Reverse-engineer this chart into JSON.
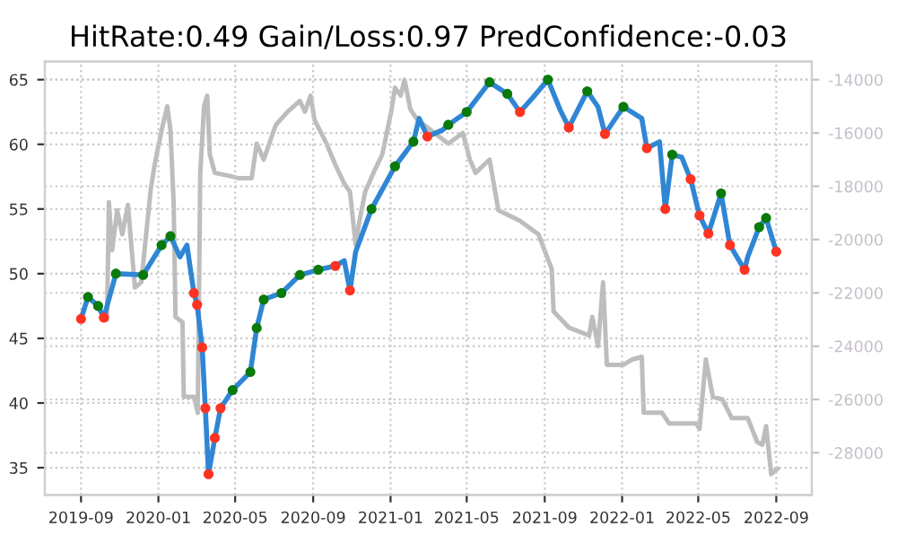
{
  "chart_data": {
    "type": "line",
    "title": "HitRate:0.49 Gain/Loss:0.97 PredConfidence:-0.03",
    "xlim": [
      "2019-07-06",
      "2022-10-27"
    ],
    "xticks": [
      "2019-09",
      "2020-01",
      "2020-05",
      "2020-09",
      "2021-01",
      "2021-05",
      "2021-09",
      "2022-01",
      "2022-05",
      "2022-09"
    ],
    "ylim": [
      32.9,
      66.4
    ],
    "yticks": [
      35,
      40,
      45,
      50,
      55,
      60,
      65
    ],
    "y2lim": [
      -29580,
      -13320
    ],
    "y2ticks": [
      -28000,
      -26000,
      -24000,
      -22000,
      -20000,
      -18000,
      -16000,
      -14000
    ],
    "grid": true,
    "series": [
      {
        "axis": "y2",
        "color": "#bdbdbd",
        "x": [
          "2019-10-03",
          "2019-10-12",
          "2019-10-15",
          "2019-10-20",
          "2019-10-28",
          "2019-11-05",
          "2019-11-14",
          "2019-11-20",
          "2019-11-25",
          "2019-12-05",
          "2019-12-20",
          "2019-12-26",
          "2020-01-06",
          "2020-01-15",
          "2020-01-20",
          "2020-01-25",
          "2020-01-28",
          "2020-02-08",
          "2020-02-10",
          "2020-02-26",
          "2020-03-03",
          "2020-03-07",
          "2020-03-13",
          "2020-03-18",
          "2020-03-22",
          "2020-03-30",
          "2020-04-20",
          "2020-05-07",
          "2020-05-27",
          "2020-06-04",
          "2020-06-15",
          "2020-07-04",
          "2020-07-23",
          "2020-08-11",
          "2020-08-19",
          "2020-08-28",
          "2020-09-03",
          "2020-09-22",
          "2020-10-06",
          "2020-10-20",
          "2020-10-29",
          "2020-11-07",
          "2020-11-13",
          "2020-11-22",
          "2020-12-05",
          "2020-12-19",
          "2021-01-02",
          "2021-01-08",
          "2021-01-17",
          "2021-01-23",
          "2021-02-01",
          "2021-02-12",
          "2021-04-02",
          "2021-04-25",
          "2021-05-06",
          "2021-05-15",
          "2021-06-06",
          "2021-06-20",
          "2021-07-24",
          "2021-08-22",
          "2021-09-12",
          "2021-09-15",
          "2021-10-09",
          "2021-11-10",
          "2021-11-15",
          "2021-11-24",
          "2021-12-02",
          "2021-12-08",
          "2022-01-03",
          "2022-01-17",
          "2022-02-01",
          "2022-02-04",
          "2022-03-05",
          "2022-03-16",
          "2022-04-28",
          "2022-05-03",
          "2022-05-13",
          "2022-05-24",
          "2022-06-08",
          "2022-06-23",
          "2022-07-18",
          "2022-08-02",
          "2022-08-10",
          "2022-08-16",
          "2022-08-24",
          "2022-09-03"
        ],
        "values": [
          -22900,
          -23000,
          -18600,
          -20400,
          -18900,
          -19800,
          -18700,
          -20400,
          -21800,
          -21600,
          -18100,
          -17200,
          -15900,
          -15000,
          -15900,
          -18600,
          -22900,
          -23100,
          -25900,
          -25900,
          -26500,
          -17500,
          -15000,
          -14600,
          -16800,
          -17500,
          -17600,
          -17700,
          -17700,
          -16400,
          -17000,
          -15700,
          -15200,
          -14800,
          -15200,
          -14600,
          -15500,
          -16400,
          -17200,
          -17900,
          -18200,
          -20200,
          -19300,
          -18200,
          -17500,
          -16800,
          -15200,
          -14300,
          -14600,
          -14000,
          -15100,
          -15500,
          -16400,
          -16000,
          -17000,
          -17500,
          -17000,
          -18900,
          -19300,
          -19800,
          -21100,
          -22700,
          -23300,
          -23600,
          -22900,
          -24000,
          -21600,
          -24700,
          -24700,
          -24500,
          -24400,
          -26500,
          -26500,
          -26900,
          -26900,
          -27100,
          -24500,
          -25900,
          -26000,
          -26700,
          -26700,
          -27600,
          -27700,
          -27000,
          -28800,
          -28600
        ]
      },
      {
        "color": "#2f86d4",
        "x": [
          "2019-09-01",
          "2019-09-12",
          "2019-09-28",
          "2019-10-07",
          "2019-10-26",
          "2019-12-08",
          "2020-01-06",
          "2020-01-20",
          "2020-02-04",
          "2020-02-15",
          "2020-02-26",
          "2020-03-02",
          "2020-03-10",
          "2020-03-15",
          "2020-03-20",
          "2020-03-30",
          "2020-04-08",
          "2020-04-27",
          "2020-05-25",
          "2020-06-04",
          "2020-06-15",
          "2020-07-13",
          "2020-08-11",
          "2020-09-09",
          "2020-10-06",
          "2020-10-20",
          "2020-10-29",
          "2020-11-07",
          "2020-12-02",
          "2021-01-08",
          "2021-02-06",
          "2021-02-15",
          "2021-02-28",
          "2021-03-24",
          "2021-04-02",
          "2021-05-01",
          "2021-06-06",
          "2021-07-04",
          "2021-07-24",
          "2021-08-13",
          "2021-09-06",
          "2021-09-25",
          "2021-10-09",
          "2021-11-07",
          "2021-11-24",
          "2021-12-05",
          "2022-01-03",
          "2022-02-01",
          "2022-02-09",
          "2022-03-01",
          "2022-03-10",
          "2022-03-21",
          "2022-04-05",
          "2022-04-19",
          "2022-05-03",
          "2022-05-17",
          "2022-06-06",
          "2022-06-20",
          "2022-07-13",
          "2022-07-18",
          "2022-08-05",
          "2022-08-16",
          "2022-09-01"
        ],
        "values": [
          46.5,
          48.2,
          47.5,
          46.6,
          50.0,
          49.9,
          52.2,
          52.9,
          51.3,
          52.2,
          48.5,
          47.6,
          44.3,
          39.6,
          34.5,
          37.3,
          39.6,
          41.0,
          42.4,
          45.8,
          48.0,
          48.5,
          49.9,
          50.3,
          50.6,
          51.0,
          48.7,
          51.7,
          55.0,
          58.3,
          60.2,
          62.0,
          60.6,
          61.1,
          61.5,
          62.5,
          64.8,
          63.9,
          62.5,
          63.6,
          65.0,
          62.7,
          61.3,
          64.1,
          62.9,
          60.8,
          62.9,
          62.0,
          59.7,
          60.2,
          55.0,
          59.2,
          59.0,
          57.3,
          54.5,
          53.1,
          56.2,
          52.2,
          50.3,
          51.3,
          53.6,
          54.3,
          51.7
        ]
      },
      {
        "type": "scatter",
        "marker": "circle",
        "color": "#0a7a0a",
        "x": [
          "2019-09-12",
          "2019-09-28",
          "2019-10-26",
          "2019-12-08",
          "2020-01-06",
          "2020-01-20",
          "2020-04-27",
          "2020-05-25",
          "2020-06-04",
          "2020-06-15",
          "2020-07-13",
          "2020-08-11",
          "2020-09-09",
          "2020-12-02",
          "2021-01-08",
          "2021-02-06",
          "2021-04-02",
          "2021-05-01",
          "2021-06-06",
          "2021-07-04",
          "2021-09-06",
          "2021-11-07",
          "2022-01-03",
          "2022-03-21",
          "2022-06-06",
          "2022-08-05",
          "2022-08-16"
        ],
        "values": [
          48.2,
          47.5,
          50.0,
          49.9,
          52.2,
          52.9,
          41.0,
          42.4,
          45.8,
          48.0,
          48.5,
          49.9,
          50.3,
          55.0,
          58.3,
          60.2,
          61.5,
          62.5,
          64.8,
          63.9,
          65.0,
          64.1,
          62.9,
          59.2,
          56.2,
          53.6,
          54.3
        ]
      },
      {
        "type": "scatter",
        "marker": "circle",
        "color": "#ff3322",
        "x": [
          "2019-09-01",
          "2019-10-07",
          "2020-02-26",
          "2020-03-02",
          "2020-03-10",
          "2020-03-15",
          "2020-03-20",
          "2020-03-30",
          "2020-04-08",
          "2020-10-06",
          "2020-10-29",
          "2021-02-28",
          "2021-07-24",
          "2021-10-09",
          "2021-12-05",
          "2022-02-09",
          "2022-03-10",
          "2022-04-19",
          "2022-05-03",
          "2022-05-17",
          "2022-06-20",
          "2022-07-13",
          "2022-09-01"
        ],
        "values": [
          46.5,
          46.6,
          48.5,
          47.6,
          44.3,
          39.6,
          34.5,
          37.3,
          39.6,
          50.6,
          48.7,
          60.6,
          62.5,
          61.3,
          60.8,
          59.7,
          55.0,
          57.3,
          54.5,
          53.1,
          52.2,
          50.3,
          51.7
        ]
      }
    ]
  }
}
